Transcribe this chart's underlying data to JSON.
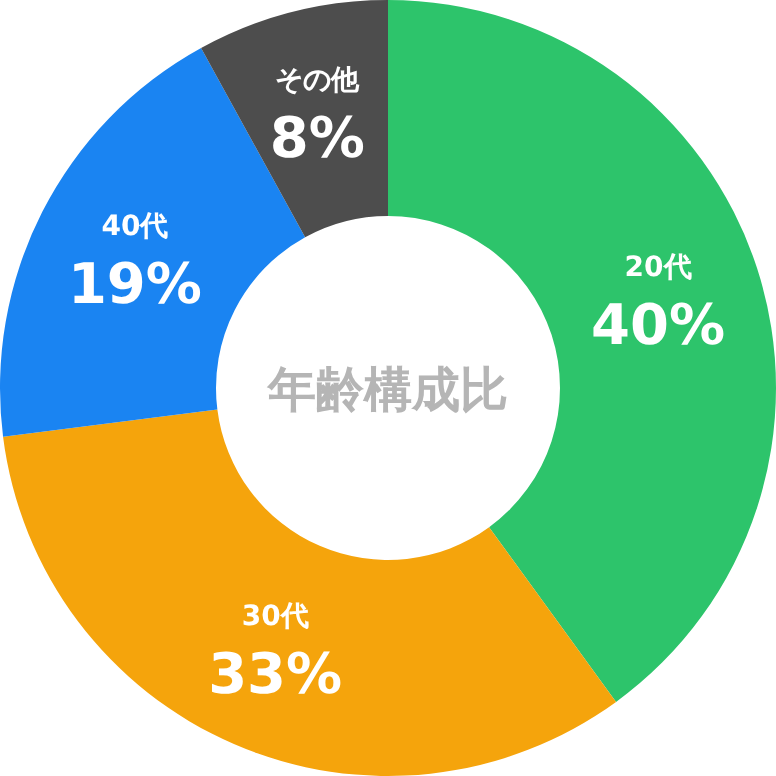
{
  "chart_data": {
    "type": "donut",
    "title": "年齢構成比",
    "categories": [
      "20代",
      "30代",
      "40代",
      "その他"
    ],
    "values": [
      40,
      33,
      19,
      8
    ],
    "colors": [
      "#2dc46b",
      "#f5a40c",
      "#1a84f2",
      "#4d4d4d"
    ],
    "value_labels": [
      "40%",
      "33%",
      "19%",
      "8%"
    ]
  }
}
